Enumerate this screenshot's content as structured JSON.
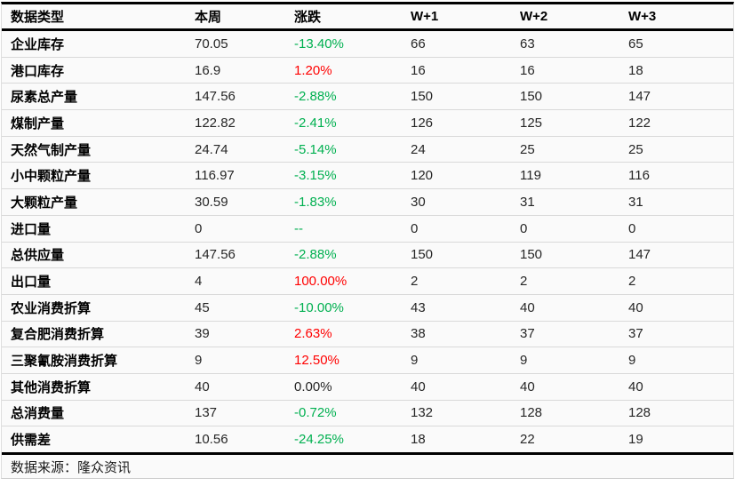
{
  "chart_data": {
    "type": "table",
    "columns": [
      "数据类型",
      "本周",
      "涨跌",
      "W+1",
      "W+2",
      "W+3"
    ],
    "rows": [
      {
        "label": "企业库存",
        "current": "70.05",
        "change": "-13.40%",
        "direction": "down",
        "w1": "66",
        "w2": "63",
        "w3": "65"
      },
      {
        "label": "港口库存",
        "current": "16.9",
        "change": "1.20%",
        "direction": "up",
        "w1": "16",
        "w2": "16",
        "w3": "18"
      },
      {
        "label": "尿素总产量",
        "current": "147.56",
        "change": "-2.88%",
        "direction": "down",
        "w1": "150",
        "w2": "150",
        "w3": "147"
      },
      {
        "label": "煤制产量",
        "current": "122.82",
        "change": "-2.41%",
        "direction": "down",
        "w1": "126",
        "w2": "125",
        "w3": "122"
      },
      {
        "label": "天然气制产量",
        "current": "24.74",
        "change": "-5.14%",
        "direction": "down",
        "w1": "24",
        "w2": "25",
        "w3": "25"
      },
      {
        "label": "小中颗粒产量",
        "current": "116.97",
        "change": "-3.15%",
        "direction": "down",
        "w1": "120",
        "w2": "119",
        "w3": "116"
      },
      {
        "label": "大颗粒产量",
        "current": "30.59",
        "change": "-1.83%",
        "direction": "down",
        "w1": "30",
        "w2": "31",
        "w3": "31"
      },
      {
        "label": "进口量",
        "current": "0",
        "change": "--",
        "direction": "na",
        "w1": "0",
        "w2": "0",
        "w3": "0"
      },
      {
        "label": "总供应量",
        "current": "147.56",
        "change": "-2.88%",
        "direction": "down",
        "w1": "150",
        "w2": "150",
        "w3": "147"
      },
      {
        "label": "出口量",
        "current": "4",
        "change": "100.00%",
        "direction": "up",
        "w1": "2",
        "w2": "2",
        "w3": "2"
      },
      {
        "label": "农业消费折算",
        "current": "45",
        "change": "-10.00%",
        "direction": "down",
        "w1": "43",
        "w2": "40",
        "w3": "40"
      },
      {
        "label": "复合肥消费折算",
        "current": "39",
        "change": "2.63%",
        "direction": "up",
        "w1": "38",
        "w2": "37",
        "w3": "37"
      },
      {
        "label": "三聚氰胺消费折算",
        "current": "9",
        "change": "12.50%",
        "direction": "up",
        "w1": "9",
        "w2": "9",
        "w3": "9"
      },
      {
        "label": "其他消费折算",
        "current": "40",
        "change": "0.00%",
        "direction": "flat",
        "w1": "40",
        "w2": "40",
        "w3": "40"
      },
      {
        "label": "总消费量",
        "current": "137",
        "change": "-0.72%",
        "direction": "down",
        "w1": "132",
        "w2": "128",
        "w3": "128"
      },
      {
        "label": "供需差",
        "current": "10.56",
        "change": "-24.25%",
        "direction": "down",
        "w1": "18",
        "w2": "22",
        "w3": "19"
      }
    ],
    "source_note": "数据来源：隆众资讯",
    "colors": {
      "up_red": "#ff0000",
      "down_green": "#00b050",
      "flat_dark": "#262626"
    }
  }
}
